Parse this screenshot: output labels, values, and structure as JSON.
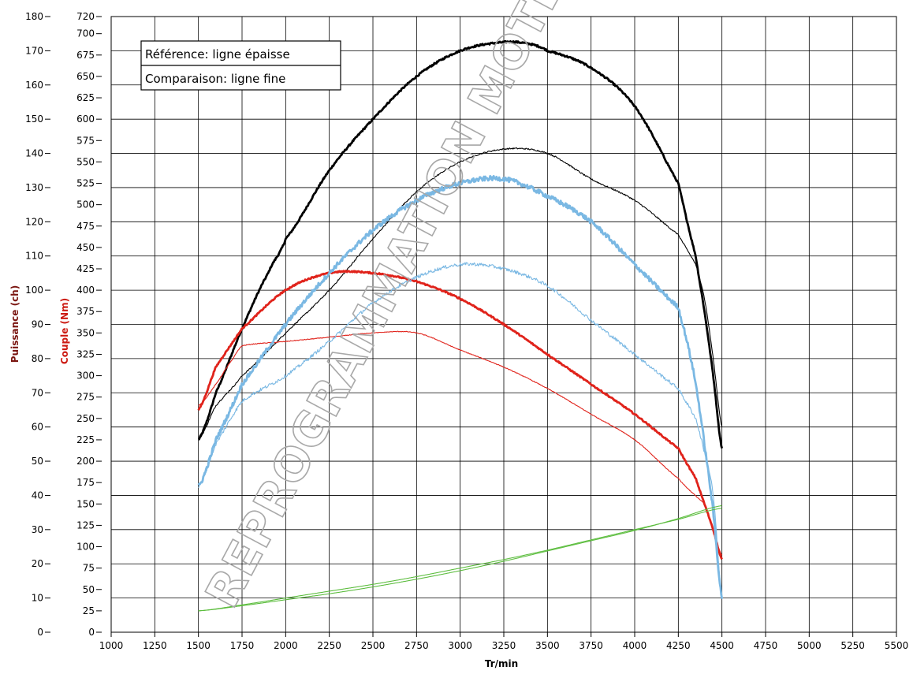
{
  "chart_data": {
    "type": "line",
    "xlabel": "Tr/min",
    "ylabel_power": "Puissance (ch)",
    "ylabel_torque": "Couple (Nm)",
    "xlim": [
      1000,
      5500
    ],
    "x_ticks": [
      1000,
      1250,
      1500,
      1750,
      2000,
      2250,
      2500,
      2750,
      3000,
      3250,
      3500,
      3750,
      4000,
      4250,
      4500,
      4750,
      5000,
      5250,
      5500
    ],
    "power_axis": {
      "range": [
        0,
        180
      ],
      "ticks": [
        0,
        10,
        20,
        30,
        40,
        50,
        60,
        70,
        80,
        90,
        100,
        110,
        120,
        130,
        140,
        150,
        160,
        170,
        180
      ]
    },
    "torque_axis": {
      "range": [
        0,
        720
      ],
      "ticks": [
        0,
        25,
        50,
        75,
        100,
        125,
        150,
        175,
        200,
        225,
        250,
        275,
        300,
        325,
        350,
        375,
        400,
        425,
        450,
        475,
        500,
        525,
        550,
        575,
        600,
        625,
        650,
        675,
        700,
        720
      ]
    },
    "grid": true,
    "legend": [
      {
        "label": "Référence: ligne épaisse"
      },
      {
        "label": "Comparaison: ligne fine"
      }
    ],
    "watermark": "REPROGRAMMATION MOTEUR CORSE",
    "colors": {
      "black": "#000000",
      "red": "#e0231b",
      "blue": "#7ab8e3",
      "green": "#5cbd3e",
      "torque_label": "#cc1a12",
      "power_label": "#7a1510"
    },
    "series": [
      {
        "color": "black",
        "weight": "thick",
        "axis": "torque",
        "noise": 1.0,
        "x": [
          1500,
          1600,
          1750,
          1900,
          2000,
          2250,
          2500,
          2750,
          3000,
          3250,
          3400,
          3500,
          3750,
          4000,
          4250,
          4350,
          4400,
          4450,
          4500
        ],
        "y": [
          225,
          280,
          355,
          420,
          460,
          540,
          600,
          650,
          680,
          690,
          688,
          680,
          660,
          615,
          525,
          440,
          375,
          300,
          215
        ]
      },
      {
        "color": "black",
        "weight": "thin",
        "axis": "torque",
        "noise": 0.8,
        "x": [
          1500,
          1600,
          1750,
          2000,
          2250,
          2500,
          2750,
          3000,
          3250,
          3500,
          3750,
          4000,
          4250,
          4350,
          4400,
          4450,
          4500
        ],
        "y": [
          225,
          265,
          300,
          350,
          400,
          460,
          515,
          550,
          565,
          560,
          530,
          505,
          465,
          430,
          390,
          320,
          240
        ]
      },
      {
        "color": "red",
        "weight": "thick",
        "axis": "torque",
        "noise": 0.8,
        "x": [
          1500,
          1600,
          1750,
          2000,
          2250,
          2500,
          2750,
          3000,
          3250,
          3500,
          3750,
          4000,
          4250,
          4350,
          4400,
          4450,
          4500
        ],
        "y": [
          260,
          310,
          355,
          400,
          420,
          420,
          410,
          390,
          360,
          325,
          290,
          255,
          215,
          180,
          150,
          120,
          85
        ]
      },
      {
        "color": "red",
        "weight": "thin",
        "axis": "torque",
        "noise": 0.4,
        "x": [
          1500,
          1600,
          1700,
          1750,
          2000,
          2250,
          2500,
          2750,
          3000,
          3250,
          3500,
          3750,
          4000,
          4250,
          4400,
          4450,
          4500
        ],
        "y": [
          265,
          290,
          320,
          335,
          340,
          345,
          350,
          350,
          330,
          310,
          285,
          255,
          225,
          180,
          150,
          120,
          90
        ]
      },
      {
        "color": "blue",
        "weight": "thick",
        "axis": "torque",
        "noise": 2.6,
        "x": [
          1500,
          1600,
          1750,
          2000,
          2250,
          2500,
          2750,
          3000,
          3250,
          3500,
          3750,
          4000,
          4250,
          4300,
          4350,
          4400,
          4450,
          4500
        ],
        "y": [
          170,
          225,
          290,
          360,
          420,
          470,
          505,
          525,
          530,
          510,
          480,
          430,
          380,
          340,
          290,
          220,
          140,
          40
        ]
      },
      {
        "color": "blue",
        "weight": "thin",
        "axis": "torque",
        "noise": 2.0,
        "x": [
          1500,
          1600,
          1750,
          2000,
          2250,
          2500,
          2750,
          3000,
          3250,
          3500,
          3750,
          4000,
          4250,
          4350,
          4400,
          4450,
          4500
        ],
        "y": [
          170,
          220,
          270,
          300,
          340,
          385,
          415,
          430,
          425,
          405,
          365,
          325,
          285,
          250,
          210,
          160,
          40
        ]
      },
      {
        "color": "green",
        "weight": "thin",
        "axis": "torque",
        "noise": 0.0,
        "x": [
          1500,
          1750,
          2000,
          2250,
          2500,
          2750,
          3000,
          3250,
          3500,
          3750,
          4000,
          4250,
          4500
        ],
        "y": [
          25,
          32,
          40,
          48,
          56,
          65,
          75,
          85,
          96,
          108,
          120,
          132,
          145
        ]
      },
      {
        "color": "green",
        "weight": "thin",
        "axis": "torque",
        "noise": 0.0,
        "x": [
          1500,
          1750,
          2000,
          2250,
          2500,
          2750,
          3000,
          3250,
          3500,
          3750,
          4000,
          4250,
          4500
        ],
        "y": [
          25,
          31,
          38,
          45,
          53,
          62,
          72,
          83,
          95,
          107,
          119,
          133,
          148
        ]
      }
    ]
  }
}
